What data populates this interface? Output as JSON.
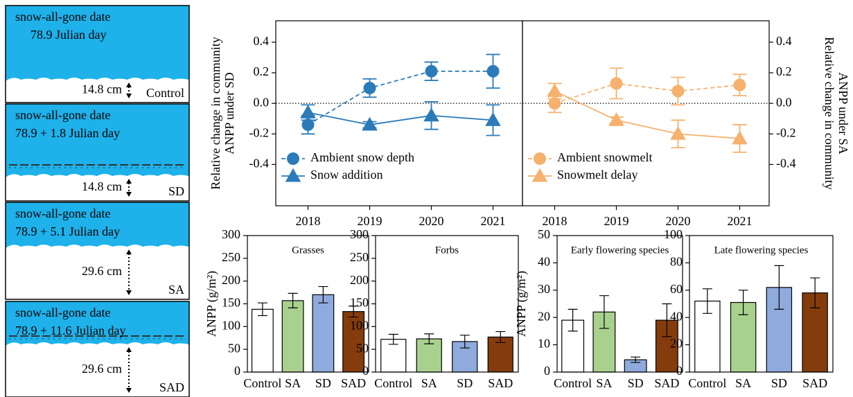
{
  "scenarios": [
    {
      "heading": "snow-all-gone date",
      "date": "78.9 Julian day",
      "depth": "14.8 cm",
      "treatment": "Control"
    },
    {
      "heading": "snow-all-gone date",
      "date": "78.9 + 1.8 Julian day",
      "depth": "14.8 cm",
      "treatment": "SD"
    },
    {
      "heading": "snow-all-gone date",
      "date": "78.9 + 5.1 Julian day",
      "depth": "29.6 cm",
      "treatment": "SA"
    },
    {
      "heading": "snow-all-gone date",
      "date": "78.9 + 11.6 Julian day",
      "depth": "29.6 cm",
      "treatment": "SAD"
    }
  ],
  "chart_data": [
    {
      "type": "line",
      "axis": "y",
      "ylabel": [
        "Relative change  in community",
        "ANPP under SD"
      ],
      "categories": [
        "2018",
        "2019",
        "2020",
        "2021"
      ],
      "ylim": [
        -0.67,
        0.54
      ],
      "yticks": [
        -0.4,
        -0.2,
        {
          "value": 0,
          "label": "0.0"
        },
        0.2,
        0.4
      ],
      "zero_line": true,
      "legend": "lower left",
      "series": [
        {
          "name": "Ambient snow depth",
          "color": "#2b7bb9",
          "marker": "circle",
          "linestyle": "dashed",
          "values": [
            -0.14,
            0.1,
            0.21,
            0.21
          ],
          "errors": [
            0.06,
            0.06,
            0.06,
            0.11
          ]
        },
        {
          "name": "Snow addition",
          "color": "#2b7bb9",
          "marker": "triangle",
          "linestyle": "solid",
          "values": [
            -0.06,
            -0.14,
            -0.08,
            -0.11
          ],
          "errors": [
            0.05,
            0.02,
            0.09,
            0.1
          ]
        }
      ]
    },
    {
      "type": "line",
      "axis": "y2",
      "ylabel": [
        "Relative change  in community",
        "ANPP under SA"
      ],
      "categories": [
        "2018",
        "2019",
        "2020",
        "2021"
      ],
      "ylim": [
        -0.67,
        0.54
      ],
      "yticks": [
        -0.4,
        -0.2,
        {
          "value": 0,
          "label": "0.0"
        },
        0.2,
        0.4
      ],
      "zero_line": true,
      "legend": "lower left",
      "series": [
        {
          "name": "Ambient snowmelt",
          "color": "#f5b16d",
          "marker": "circle",
          "linestyle": "dashed",
          "values": [
            0.0,
            0.13,
            0.08,
            0.12
          ],
          "errors": [
            0.06,
            0.1,
            0.09,
            0.07
          ]
        },
        {
          "name": "Snowmelt delay",
          "color": "#f5b16d",
          "marker": "triangle",
          "linestyle": "solid",
          "values": [
            0.08,
            -0.11,
            -0.2,
            -0.23
          ],
          "errors": [
            0.05,
            0.02,
            0.09,
            0.09
          ]
        }
      ]
    },
    {
      "type": "bar",
      "title": "Grasses",
      "ylabel": "ANPP (g/m²)",
      "categories": [
        "Control",
        "SA",
        "SD",
        "SAD"
      ],
      "colors": [
        "#ffffff",
        "#a9d18e",
        "#8faadc",
        "#843c0c"
      ],
      "values": [
        138,
        157,
        170,
        133
      ],
      "errors": [
        14,
        16,
        18,
        12
      ],
      "ylim": [
        0,
        300
      ],
      "yticks": [
        0,
        50,
        100,
        150,
        200,
        250,
        300
      ]
    },
    {
      "type": "bar",
      "title": "Forbs",
      "categories": [
        "Control",
        "SA",
        "SD",
        "SAD"
      ],
      "colors": [
        "#ffffff",
        "#a9d18e",
        "#8faadc",
        "#843c0c"
      ],
      "values": [
        72,
        73,
        67,
        77
      ],
      "errors": [
        11,
        11,
        14,
        12
      ],
      "ylim": [
        0,
        300
      ],
      "yticks": [
        0,
        50,
        100,
        150,
        200,
        250,
        300
      ]
    },
    {
      "type": "bar",
      "title": "Early flowering species",
      "ylabel": "ANPP (g/m²)",
      "categories": [
        "Control",
        "SA",
        "SD",
        "SAD"
      ],
      "colors": [
        "#ffffff",
        "#a9d18e",
        "#8faadc",
        "#843c0c"
      ],
      "values": [
        19,
        22,
        4.5,
        19
      ],
      "errors": [
        4,
        6,
        1,
        6
      ],
      "ylim": [
        0,
        50
      ],
      "yticks": [
        0,
        10,
        20,
        30,
        40,
        50
      ]
    },
    {
      "type": "bar",
      "title": "Late flowering species",
      "categories": [
        "Control",
        "SA",
        "SD",
        "SAD"
      ],
      "colors": [
        "#ffffff",
        "#a9d18e",
        "#8faadc",
        "#843c0c"
      ],
      "values": [
        52,
        51,
        62,
        58
      ],
      "errors": [
        9,
        9,
        16,
        11
      ],
      "ylim": [
        0,
        100
      ],
      "yticks": [
        0,
        20,
        40,
        60,
        80,
        100
      ]
    }
  ]
}
